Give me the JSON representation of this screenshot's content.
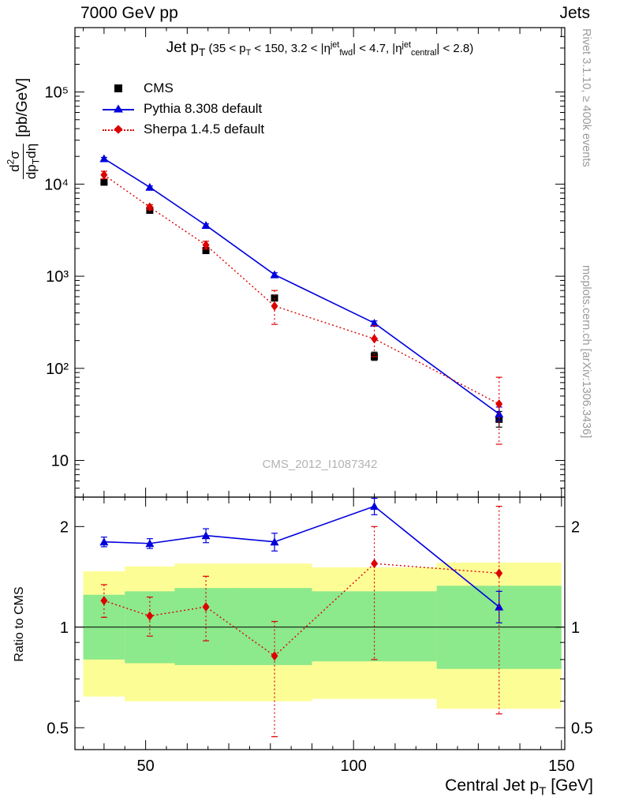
{
  "header": {
    "left": "7000 GeV pp",
    "right": "Jets"
  },
  "side_right": {
    "top_text": "Rivet 3.1.10, ≥ 400k events",
    "bottom_text": "mcplots.cern.ch [arXiv:1306.3436]"
  },
  "watermark": "CMS_2012_I1087342",
  "labels": {
    "title_main": [
      {
        "t": "Jet p"
      },
      {
        "t": "T",
        "m": "sub"
      }
    ],
    "title_paren": [
      {
        "t": " (35 < p"
      },
      {
        "t": "T",
        "m": "sub"
      },
      {
        "t": " < 150, 3.2 < |"
      },
      {
        "t": "η"
      },
      {
        "t": "jet",
        "m": "sup"
      },
      {
        "t": "fwd",
        "m": "sub"
      },
      {
        "t": "| < 4.7, |"
      },
      {
        "t": "η"
      },
      {
        "t": "jet",
        "m": "sup"
      },
      {
        "t": "central",
        "m": "sub"
      },
      {
        "t": "| < 2.8)"
      }
    ],
    "ylabel_num": [
      {
        "t": "d"
      },
      {
        "t": "2",
        "m": "sup"
      },
      {
        "t": "σ"
      }
    ],
    "ylabel_den": [
      {
        "t": "dp"
      },
      {
        "t": "T",
        "m": "sub"
      },
      {
        "t": "dη"
      }
    ],
    "ylabel_unit": "[pb/GeV]",
    "ratio_ylabel": "Ratio to CMS",
    "xlabel_segments": [
      {
        "t": "Central Jet p"
      },
      {
        "t": "T",
        "m": "sub"
      },
      {
        "t": " [GeV]"
      }
    ]
  },
  "chart_data": {
    "type": "line",
    "title": "Jet pT (35 < pT < 150, 3.2 < |eta_fwd_jet| < 4.7, |eta_central_jet| < 2.8)",
    "xlabel": "Central Jet pT [GeV]",
    "ylabel": "d2sigma/dpT deta [pb/GeV]",
    "ratio_label": "Ratio to CMS",
    "x_axis": {
      "min": 33,
      "max": 150.8,
      "major_ticks": [
        50,
        100,
        150
      ],
      "minor_step": 5
    },
    "y_axis_main": {
      "scale": "log",
      "min": 4,
      "max": 500000,
      "tick_values": [
        10,
        100,
        1000,
        10000,
        100000
      ],
      "tick_labels": [
        "10",
        "10²",
        "10³",
        "10⁴",
        "10⁵"
      ]
    },
    "y_axis_ratio": {
      "scale": "log",
      "min": 0.43,
      "max": 2.45,
      "tick_values": [
        2,
        1,
        0.5
      ],
      "tick_labels": [
        "2",
        "1",
        "0.5"
      ],
      "minor_ticks": [
        0.6,
        0.7,
        0.8,
        0.9
      ]
    },
    "x": [
      40,
      51,
      64.5,
      81,
      105,
      135
    ],
    "series": [
      {
        "name": "CMS",
        "color": "#000000",
        "marker": "square",
        "line": "none",
        "y": [
          10500,
          5200,
          1900,
          580,
          135,
          28
        ],
        "y_lo": [
          9900,
          4900,
          1780,
          545,
          122,
          23
        ],
        "y_hi": [
          11200,
          5500,
          2030,
          620,
          150,
          34
        ]
      },
      {
        "name": "Pythia 8.308 default",
        "color": "#0000dd",
        "marker": "triangle",
        "line": "solid",
        "y": [
          18900,
          9250,
          3570,
          1040,
          310,
          32
        ],
        "y_lo": [
          18300,
          8950,
          3440,
          990,
          294,
          27
        ],
        "y_hi": [
          19500,
          9550,
          3700,
          1090,
          327,
          38
        ],
        "ratio": [
          1.8,
          1.78,
          1.88,
          1.8,
          2.3,
          1.15
        ],
        "ratio_lo": [
          1.74,
          1.72,
          1.79,
          1.69,
          2.17,
          1.03
        ],
        "ratio_hi": [
          1.86,
          1.84,
          1.97,
          1.91,
          2.43,
          1.28
        ]
      },
      {
        "name": "Sherpa 1.4.5 default",
        "color": "#dd0000",
        "marker": "diamond",
        "line": "dotted",
        "y": [
          12600,
          5620,
          2180,
          475,
          209,
          41
        ],
        "y_lo": [
          11400,
          5280,
          1970,
          300,
          134,
          15
        ],
        "y_hi": [
          13800,
          5980,
          2400,
          700,
          290,
          80
        ],
        "ratio": [
          1.2,
          1.08,
          1.15,
          0.82,
          1.55,
          1.45
        ],
        "ratio_lo": [
          1.07,
          0.94,
          0.91,
          0.47,
          0.8,
          0.55
        ],
        "ratio_hi": [
          1.34,
          1.23,
          1.42,
          1.04,
          2.0,
          2.3
        ]
      }
    ],
    "ratio_bands": {
      "bin_edges": [
        35,
        45,
        57,
        72,
        90,
        120,
        150
      ],
      "yellow": {
        "color": "#fdfd96",
        "lo": [
          0.62,
          0.6,
          0.6,
          0.6,
          0.61,
          0.57
        ],
        "hi": [
          1.47,
          1.52,
          1.55,
          1.55,
          1.51,
          1.56
        ]
      },
      "green": {
        "color": "#8ce98c",
        "lo": [
          0.8,
          0.78,
          0.77,
          0.77,
          0.79,
          0.75
        ],
        "hi": [
          1.25,
          1.28,
          1.31,
          1.31,
          1.28,
          1.33
        ]
      }
    },
    "reference_line": 1
  }
}
